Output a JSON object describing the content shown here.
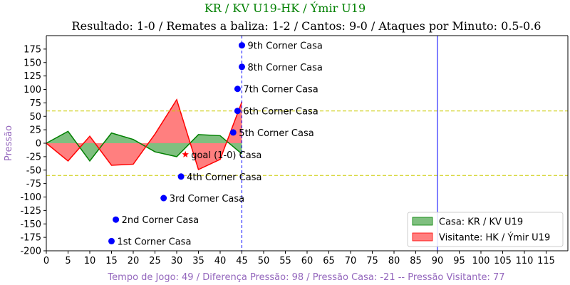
{
  "chart_data": {
    "type": "area",
    "title": "KR / KV U19-HK / Ýmir U19",
    "subtitle": "Resultado: 1-0 / Remates a baliza: 1-2 / Cantos: 9-0 / Ataques por Minuto: 0.5-0.6",
    "xlabel": "Tempo de Jogo: 49 / Diferença Pressão: 98 / Pressão Casa: -21 -- Pressão Visitante: 77",
    "ylabel": "Pressão",
    "xlim": [
      0,
      120
    ],
    "ylim": [
      -200,
      200
    ],
    "x_ticks": [
      0,
      5,
      10,
      15,
      20,
      25,
      30,
      35,
      40,
      45,
      50,
      55,
      60,
      65,
      70,
      75,
      80,
      85,
      90,
      95,
      100,
      105,
      110,
      115
    ],
    "y_ticks": [
      -200,
      -175,
      -150,
      -125,
      -100,
      -75,
      -50,
      -25,
      0,
      25,
      50,
      75,
      100,
      125,
      150,
      175
    ],
    "colors": {
      "title": "#008000",
      "xlabel": "#9467bd",
      "ylabel": "#9467bd",
      "home_fill": "#7fbf7f",
      "home_line": "#008000",
      "away_fill": "#ff7f7f",
      "away_line": "#ff0000",
      "corner_marker": "#0000ff",
      "goal_marker": "#ff0000",
      "ref_line": "#cccc00",
      "vline": "#0000ff"
    },
    "series": [
      {
        "name": "Casa: KR / KV U19",
        "x": [
          0,
          5,
          10,
          15,
          20,
          25,
          30,
          35,
          40,
          45
        ],
        "y": [
          0,
          22,
          -33,
          19,
          7,
          -16,
          -25,
          16,
          14,
          -20
        ]
      },
      {
        "name": "Visitante: HK / Ýmir U19",
        "x": [
          0,
          5,
          10,
          15,
          20,
          25,
          30,
          35,
          40,
          45
        ],
        "y": [
          0,
          -33,
          13,
          -41,
          -39,
          17,
          81,
          -49,
          -30,
          77
        ]
      }
    ],
    "reference_lines": [
      60,
      -60
    ],
    "vertical_lines": [
      {
        "x": 45,
        "style": "dashed"
      },
      {
        "x": 90,
        "style": "solid"
      }
    ],
    "annotations": [
      {
        "label": "1st Corner Casa",
        "x": 15,
        "y": -182,
        "marker": "dot"
      },
      {
        "label": "2nd Corner Casa",
        "x": 16,
        "y": -142,
        "marker": "dot"
      },
      {
        "label": "3rd Corner Casa",
        "x": 27,
        "y": -102,
        "marker": "dot"
      },
      {
        "label": "4th Corner Casa",
        "x": 31,
        "y": -62,
        "marker": "dot"
      },
      {
        "label": "goal (1-0) Casa",
        "x": 32,
        "y": -21,
        "marker": "star"
      },
      {
        "label": "5th Corner Casa",
        "x": 43,
        "y": 20,
        "marker": "dot"
      },
      {
        "label": "6th Corner Casa",
        "x": 44,
        "y": 60,
        "marker": "dot"
      },
      {
        "label": "7th Corner Casa",
        "x": 44,
        "y": 101,
        "marker": "dot"
      },
      {
        "label": "8th Corner Casa",
        "x": 45,
        "y": 142,
        "marker": "dot"
      },
      {
        "label": "9th Corner Casa",
        "x": 45,
        "y": 182,
        "marker": "dot"
      }
    ],
    "legend_position": "bottom-right",
    "grid": false
  }
}
